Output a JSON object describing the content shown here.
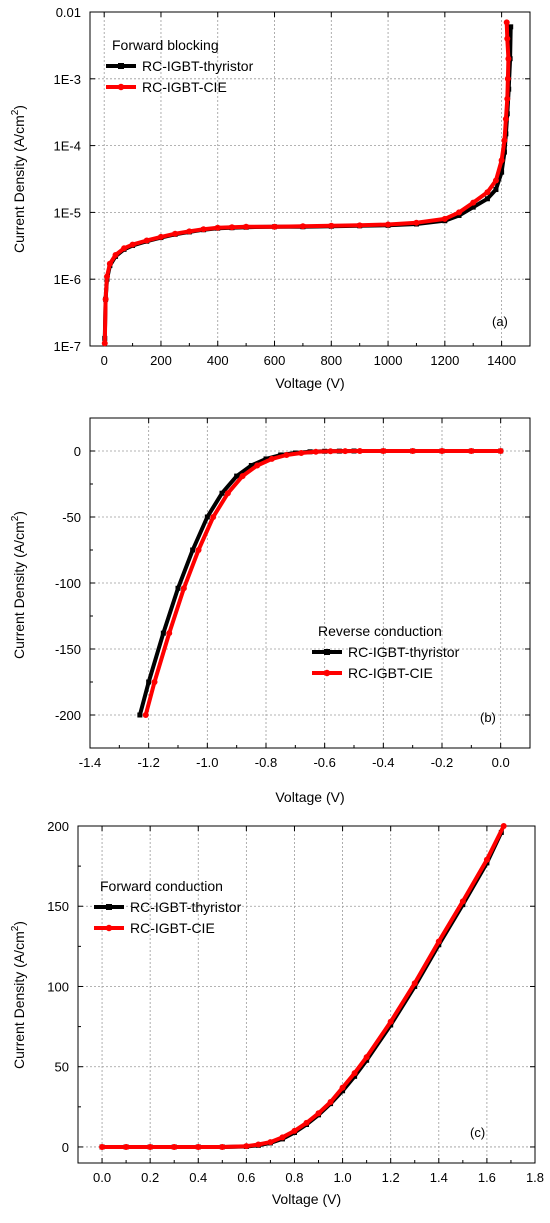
{
  "colors": {
    "thyristor": "#000000",
    "cie": "#ff0000"
  },
  "chart_data": [
    {
      "type": "line",
      "panel_label": "(a)",
      "legend_title": "Forward blocking",
      "xlabel": "Voltage (V)",
      "ylabel_main": "Current Density (A/cm",
      "ylabel_sup": "2",
      "ylabel_end": ")",
      "yscale": "log",
      "xlim": [
        -50,
        1500
      ],
      "ylim": [
        1e-07,
        0.01
      ],
      "xticks": [
        0,
        200,
        400,
        600,
        800,
        1000,
        1200,
        1400
      ],
      "xtick_labels": [
        "0",
        "200",
        "400",
        "600",
        "800",
        "1000",
        "1200",
        "1400"
      ],
      "yticks": [
        1e-07,
        1e-06,
        1e-05,
        0.0001,
        0.001,
        0.01
      ],
      "ytick_labels": [
        "1E-7",
        "1E-6",
        "1E-5",
        "1E-4",
        "1E-3",
        "0.01"
      ],
      "grid": true,
      "legend_position": "top-left",
      "series": [
        {
          "name": "RC-IGBT-thyristor",
          "color_key": "thyristor",
          "x": [
            2,
            5,
            10,
            20,
            40,
            70,
            100,
            150,
            200,
            250,
            300,
            350,
            400,
            450,
            500,
            600,
            700,
            800,
            900,
            1000,
            1100,
            1200,
            1250,
            1300,
            1350,
            1380,
            1400,
            1410,
            1415,
            1420,
            1425,
            1430,
            1432
          ],
          "y": [
            1.3e-07,
            5e-07,
            1e-06,
            1.6e-06,
            2.2e-06,
            2.8e-06,
            3.2e-06,
            3.7e-06,
            4.2e-06,
            4.7e-06,
            5.1e-06,
            5.5e-06,
            5.8e-06,
            5.9e-06,
            6e-06,
            6.1e-06,
            6.1e-06,
            6.2e-06,
            6.3e-06,
            6.4e-06,
            6.7e-06,
            7.5e-06,
            9e-06,
            1.2e-05,
            1.6e-05,
            2.2e-05,
            4e-05,
            8e-05,
            0.00015,
            0.0003,
            0.0007,
            0.002,
            0.006
          ]
        },
        {
          "name": "RC-IGBT-CIE",
          "color_key": "cie",
          "x": [
            2,
            5,
            10,
            20,
            40,
            70,
            100,
            150,
            200,
            250,
            300,
            350,
            400,
            450,
            500,
            600,
            700,
            800,
            900,
            1000,
            1100,
            1200,
            1250,
            1300,
            1350,
            1380,
            1400,
            1410,
            1415,
            1420,
            1422,
            1424,
            1420,
            1418
          ],
          "y": [
            1.1e-07,
            5e-07,
            1.1e-06,
            1.7e-06,
            2.3e-06,
            2.9e-06,
            3.3e-06,
            3.8e-06,
            4.3e-06,
            4.8e-06,
            5.2e-06,
            5.6e-06,
            5.9e-06,
            6e-06,
            6.1e-06,
            6.1e-06,
            6.2e-06,
            6.3e-06,
            6.4e-06,
            6.6e-06,
            7e-06,
            8e-06,
            1e-05,
            1.4e-05,
            2e-05,
            3e-05,
            6e-05,
            0.00012,
            0.00025,
            0.0005,
            0.001,
            0.002,
            0.004,
            0.007
          ]
        }
      ]
    },
    {
      "type": "line",
      "panel_label": "(b)",
      "legend_title": "Reverse conduction",
      "xlabel": "Voltage (V)",
      "ylabel_main": "Current Density (A/cm",
      "ylabel_sup": "2",
      "ylabel_end": ")",
      "yscale": "linear",
      "xlim": [
        -1.4,
        0.1
      ],
      "ylim": [
        -225,
        25
      ],
      "xticks": [
        -1.4,
        -1.2,
        -1.0,
        -0.8,
        -0.6,
        -0.4,
        -0.2,
        0.0
      ],
      "xtick_labels": [
        "-1.4",
        "-1.2",
        "-1.0",
        "-0.8",
        "-0.6",
        "-0.4",
        "-0.2",
        "0.0"
      ],
      "yticks": [
        -200,
        -150,
        -100,
        -50,
        0
      ],
      "ytick_labels": [
        "-200",
        "-150",
        "-100",
        "-50",
        "0"
      ],
      "grid": true,
      "legend_position": "center-right",
      "series": [
        {
          "name": "RC-IGBT-thyristor",
          "color_key": "thyristor",
          "x": [
            -1.23,
            -1.2,
            -1.15,
            -1.1,
            -1.05,
            -1.0,
            -0.95,
            -0.9,
            -0.85,
            -0.8,
            -0.75,
            -0.7,
            -0.65,
            -0.6,
            -0.55,
            -0.5,
            -0.4,
            -0.3,
            -0.2,
            -0.1,
            0.0
          ],
          "y": [
            -200,
            -175,
            -138,
            -104,
            -75,
            -50,
            -32,
            -19,
            -11,
            -6,
            -3,
            -1.5,
            -0.6,
            -0.2,
            -0.1,
            0,
            0,
            0,
            0,
            0,
            0
          ]
        },
        {
          "name": "RC-IGBT-CIE",
          "color_key": "cie",
          "x": [
            -1.21,
            -1.18,
            -1.13,
            -1.08,
            -1.03,
            -0.98,
            -0.93,
            -0.88,
            -0.83,
            -0.78,
            -0.73,
            -0.68,
            -0.63,
            -0.58,
            -0.53,
            -0.48,
            -0.4,
            -0.3,
            -0.2,
            -0.1,
            0.0
          ],
          "y": [
            -200,
            -175,
            -138,
            -104,
            -75,
            -50,
            -32,
            -19,
            -11,
            -6,
            -3,
            -1.5,
            -0.6,
            -0.2,
            -0.1,
            0,
            0,
            0,
            0,
            0,
            0
          ]
        }
      ]
    },
    {
      "type": "line",
      "panel_label": "(c)",
      "legend_title": "Forward conduction",
      "xlabel": "Voltage (V)",
      "ylabel_main": "Current Density (A/cm",
      "ylabel_sup": "2",
      "ylabel_end": ")",
      "yscale": "linear",
      "xlim": [
        -0.1,
        1.8
      ],
      "ylim": [
        -10,
        200
      ],
      "xticks": [
        0.0,
        0.2,
        0.4,
        0.6,
        0.8,
        1.0,
        1.2,
        1.4,
        1.6,
        1.8
      ],
      "xtick_labels": [
        "0.0",
        "0.2",
        "0.4",
        "0.6",
        "0.8",
        "1.0",
        "1.2",
        "1.4",
        "1.6",
        "1.8"
      ],
      "yticks": [
        0,
        50,
        100,
        150,
        200
      ],
      "ytick_labels": [
        "0",
        "50",
        "100",
        "150",
        "200"
      ],
      "grid": true,
      "legend_position": "top-left",
      "series": [
        {
          "name": "RC-IGBT-thyristor",
          "color_key": "thyristor",
          "x": [
            0.0,
            0.1,
            0.2,
            0.3,
            0.4,
            0.5,
            0.6,
            0.65,
            0.7,
            0.75,
            0.8,
            0.85,
            0.9,
            0.95,
            1.0,
            1.05,
            1.1,
            1.2,
            1.3,
            1.4,
            1.5,
            1.6,
            1.66
          ],
          "y": [
            0,
            0,
            0,
            0,
            0,
            0,
            0.3,
            1,
            2.5,
            5,
            9,
            14,
            20,
            27,
            35,
            44,
            54,
            76,
            100,
            126,
            151,
            177,
            196
          ]
        },
        {
          "name": "RC-IGBT-CIE",
          "color_key": "cie",
          "x": [
            0.0,
            0.1,
            0.2,
            0.3,
            0.4,
            0.5,
            0.6,
            0.65,
            0.7,
            0.75,
            0.8,
            0.85,
            0.9,
            0.95,
            1.0,
            1.05,
            1.1,
            1.2,
            1.3,
            1.4,
            1.5,
            1.6,
            1.67
          ],
          "y": [
            0,
            0,
            0,
            0,
            0,
            0,
            0.5,
            1.5,
            3,
            6,
            10,
            15,
            21,
            28,
            37,
            46,
            56,
            78,
            102,
            128,
            153,
            179,
            200
          ]
        }
      ]
    }
  ]
}
